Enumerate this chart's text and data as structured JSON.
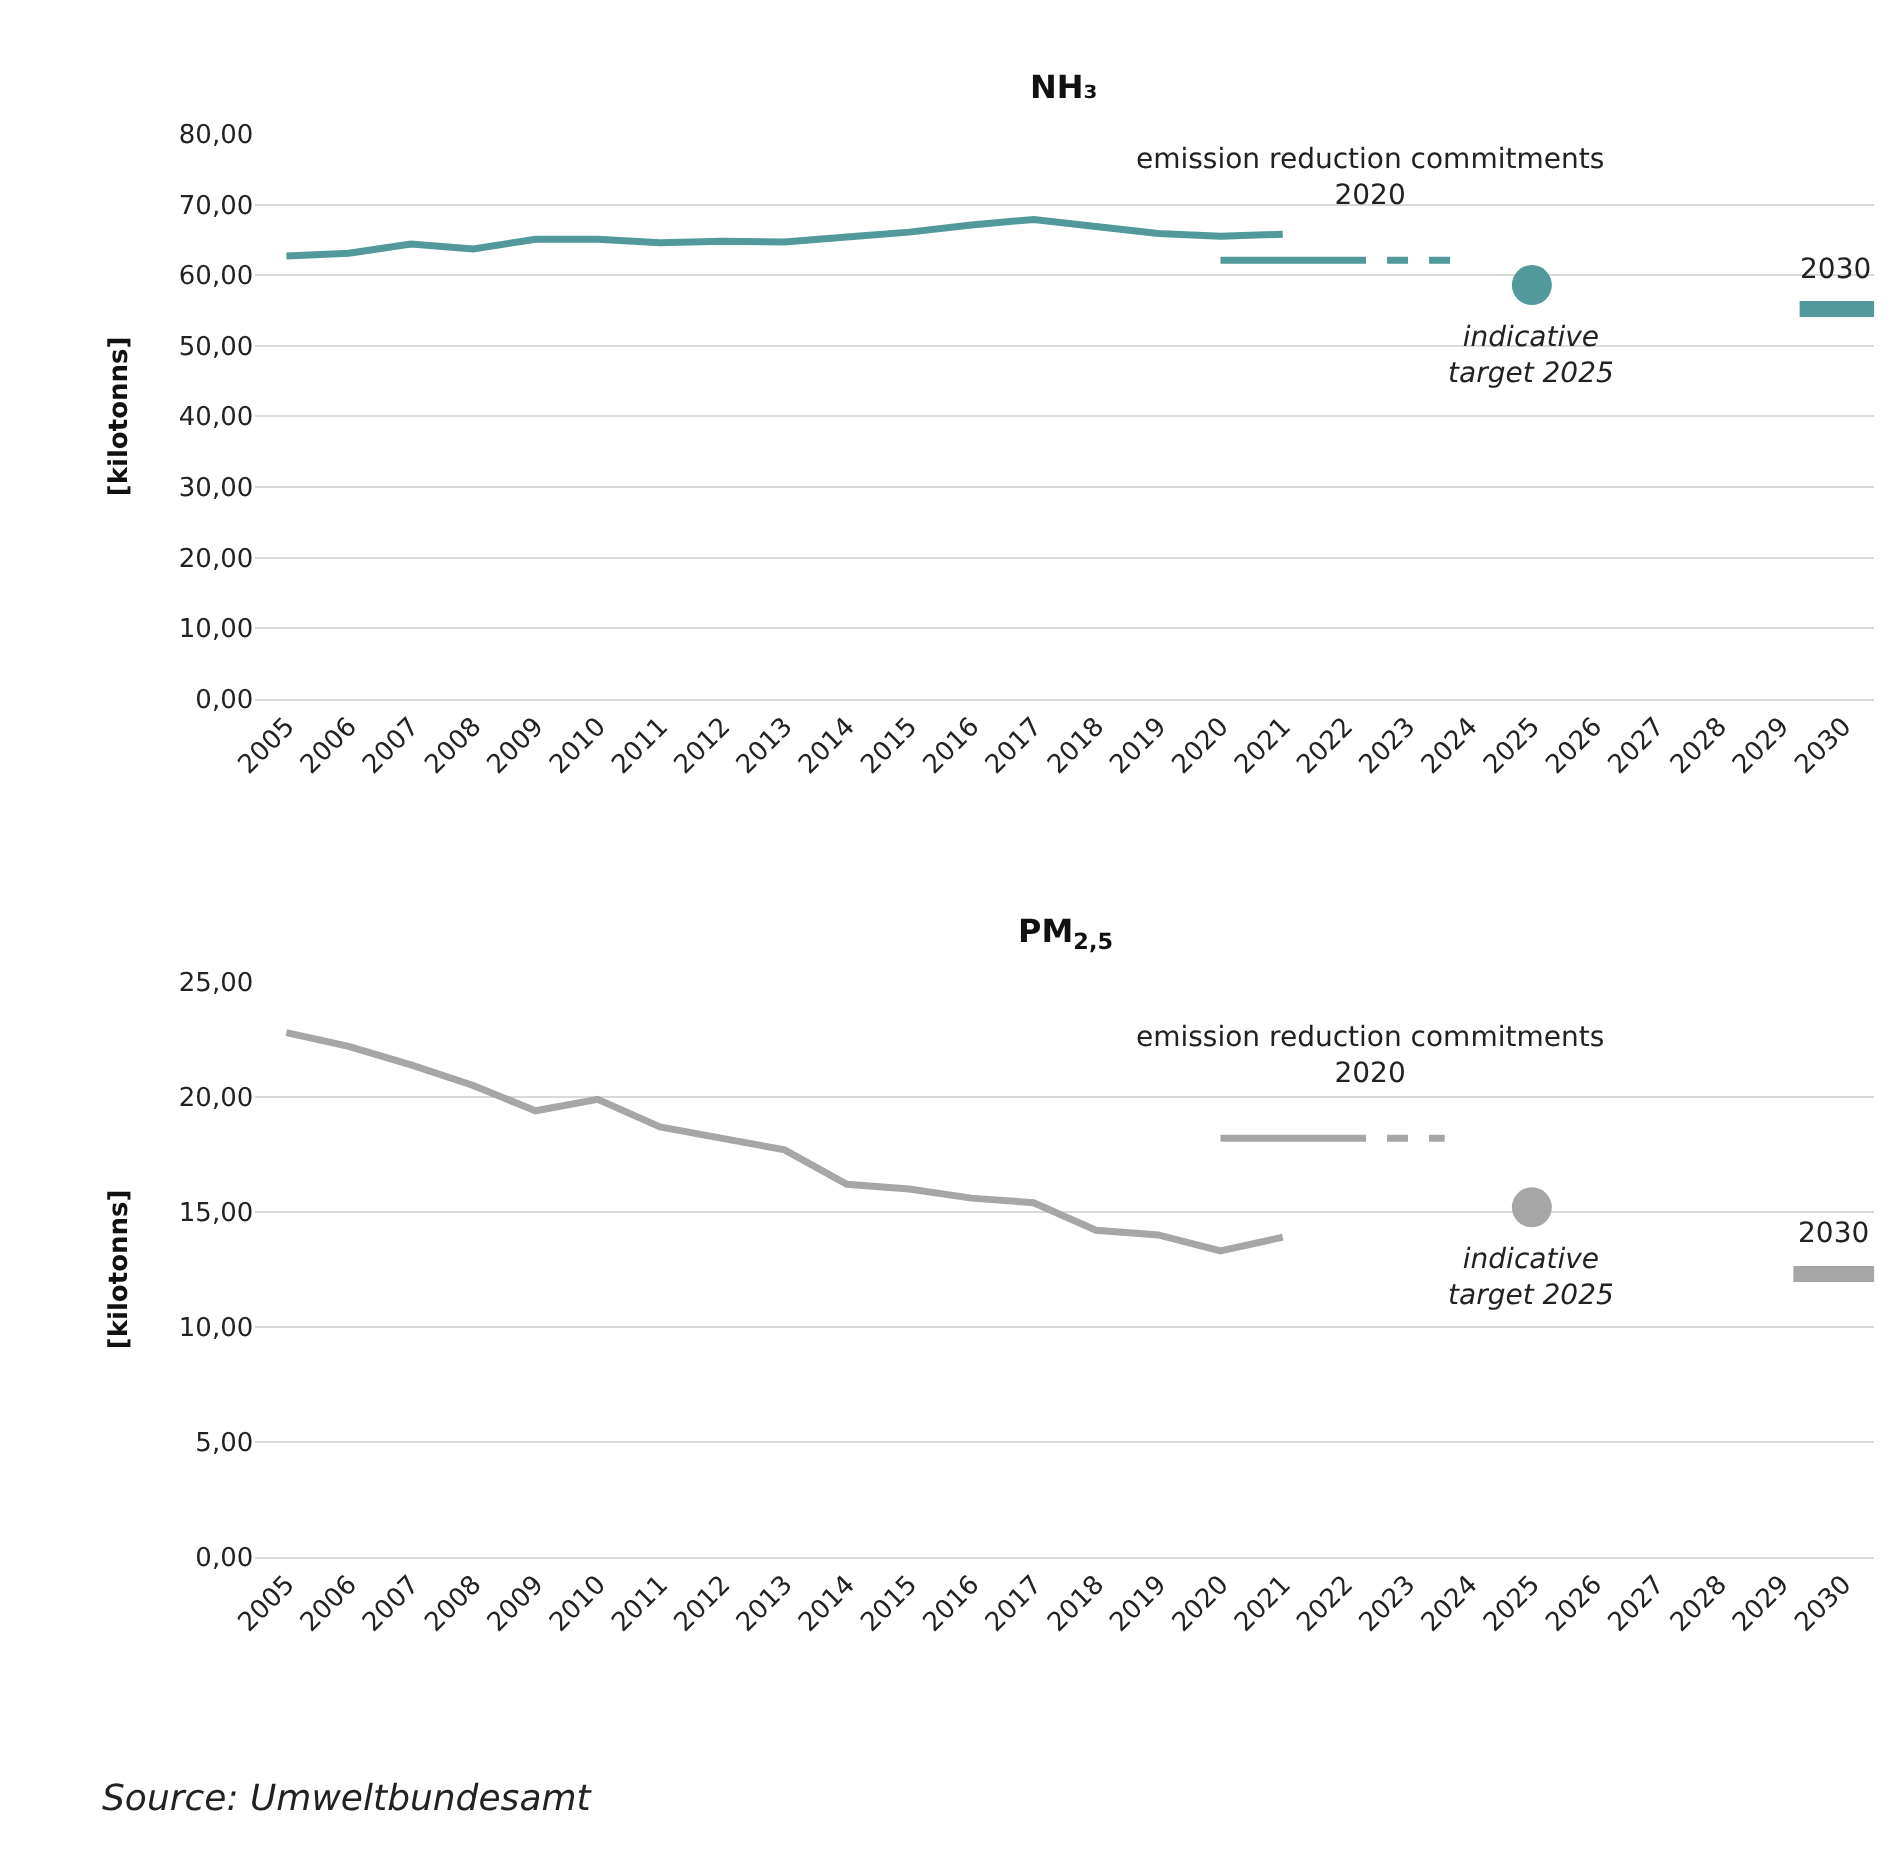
{
  "chart_data": [
    {
      "type": "line",
      "title": "NH₃",
      "ylabel": "[kilotonns]",
      "grid": "y",
      "xlim": [
        2004.5,
        2030.5
      ],
      "xticks": [
        2005,
        2006,
        2007,
        2008,
        2009,
        2010,
        2011,
        2012,
        2013,
        2014,
        2015,
        2016,
        2017,
        2018,
        2019,
        2020,
        2021,
        2022,
        2023,
        2024,
        2025,
        2026,
        2027,
        2028,
        2029,
        2030
      ],
      "ylim": [
        0,
        80
      ],
      "yticks": [
        {
          "value": 0,
          "label": "0,00"
        },
        {
          "value": 10,
          "label": "10,00"
        },
        {
          "value": 20,
          "label": "20,00"
        },
        {
          "value": 30,
          "label": "30,00"
        },
        {
          "value": 40,
          "label": "40,00"
        },
        {
          "value": 50,
          "label": "50,00"
        },
        {
          "value": 60,
          "label": "60,00"
        },
        {
          "value": 70,
          "label": "70,00"
        },
        {
          "value": 80,
          "label": "80,00"
        }
      ],
      "series": [
        {
          "color": "#52999b",
          "x": [
            2005,
            2006,
            2007,
            2008,
            2009,
            2010,
            2011,
            2012,
            2013,
            2014,
            2015,
            2016,
            2017,
            2018,
            2019,
            2020,
            2021
          ],
          "values": [
            62.7,
            63.1,
            64.4,
            63.7,
            65.1,
            65.1,
            64.6,
            64.8,
            64.7,
            65.4,
            66.1,
            67.1,
            67.9,
            66.9,
            65.9,
            65.5,
            65.8
          ]
        },
        {
          "type": "line",
          "color": "#52999b",
          "line_style": "solid",
          "x": [
            2020,
            2022
          ],
          "values": [
            62.1,
            62.1
          ]
        },
        {
          "type": "line",
          "color": "#52999b",
          "line_style": "dashed",
          "x": [
            2022,
            2023.7
          ],
          "values": [
            62.1,
            62.1
          ]
        },
        {
          "type": "scatter",
          "color": "#52999b",
          "marker": "circle",
          "x": [
            2025
          ],
          "values": [
            58.6
          ]
        },
        {
          "type": "line",
          "color": "#52999b",
          "x": [
            2029.3,
            2030.5
          ],
          "values": [
            55.2,
            55.2
          ]
        }
      ],
      "annotations": [
        "emission reduction commitments\n2020",
        "2030",
        "indicative\ntarget 2025"
      ]
    },
    {
      "type": "line",
      "title": "PM$_{2,5}$",
      "ylabel": "[kilotonns]",
      "grid": "y",
      "xlim": [
        2004.5,
        2030.5
      ],
      "xticks": [
        2005,
        2006,
        2007,
        2008,
        2009,
        2010,
        2011,
        2012,
        2013,
        2014,
        2015,
        2016,
        2017,
        2018,
        2019,
        2020,
        2021,
        2022,
        2023,
        2024,
        2025,
        2026,
        2027,
        2028,
        2029,
        2030
      ],
      "ylim": [
        0,
        25
      ],
      "yticks": [
        {
          "value": 0,
          "label": "0,00"
        },
        {
          "value": 5,
          "label": "5,00"
        },
        {
          "value": 10,
          "label": "10,00"
        },
        {
          "value": 15,
          "label": "15,00"
        },
        {
          "value": 20,
          "label": "20,00"
        },
        {
          "value": 25,
          "label": "25,00"
        }
      ],
      "series": [
        {
          "color": "#a6a6a6",
          "x": [
            2005,
            2006,
            2007,
            2008,
            2009,
            2010,
            2011,
            2012,
            2013,
            2014,
            2015,
            2016,
            2017,
            2018,
            2019,
            2020,
            2021
          ],
          "values": [
            22.8,
            22.2,
            21.4,
            20.5,
            19.4,
            19.9,
            18.7,
            18.2,
            17.7,
            16.2,
            16.0,
            15.6,
            15.4,
            14.2,
            14.0,
            13.3,
            13.9
          ]
        },
        {
          "type": "line",
          "color": "#a6a6a6",
          "line_style": "solid",
          "x": [
            2020,
            2022
          ],
          "values": [
            18.2,
            18.2
          ]
        },
        {
          "type": "line",
          "color": "#a6a6a6",
          "line_style": "dashed",
          "x": [
            2022,
            2023.6
          ],
          "values": [
            18.2,
            18.2
          ]
        },
        {
          "type": "scatter",
          "color": "#a6a6a6",
          "marker": "circle",
          "x": [
            2025
          ],
          "values": [
            15.2
          ]
        },
        {
          "type": "line",
          "color": "#a6a6a6",
          "x": [
            2029.2,
            2030.5
          ],
          "values": [
            12.3,
            12.3
          ]
        }
      ],
      "annotations": [
        "emission reduction commitments\n2020",
        "2030",
        "indicative\ntarget 2025",
        "Source: Umweltbundesamt"
      ]
    }
  ]
}
